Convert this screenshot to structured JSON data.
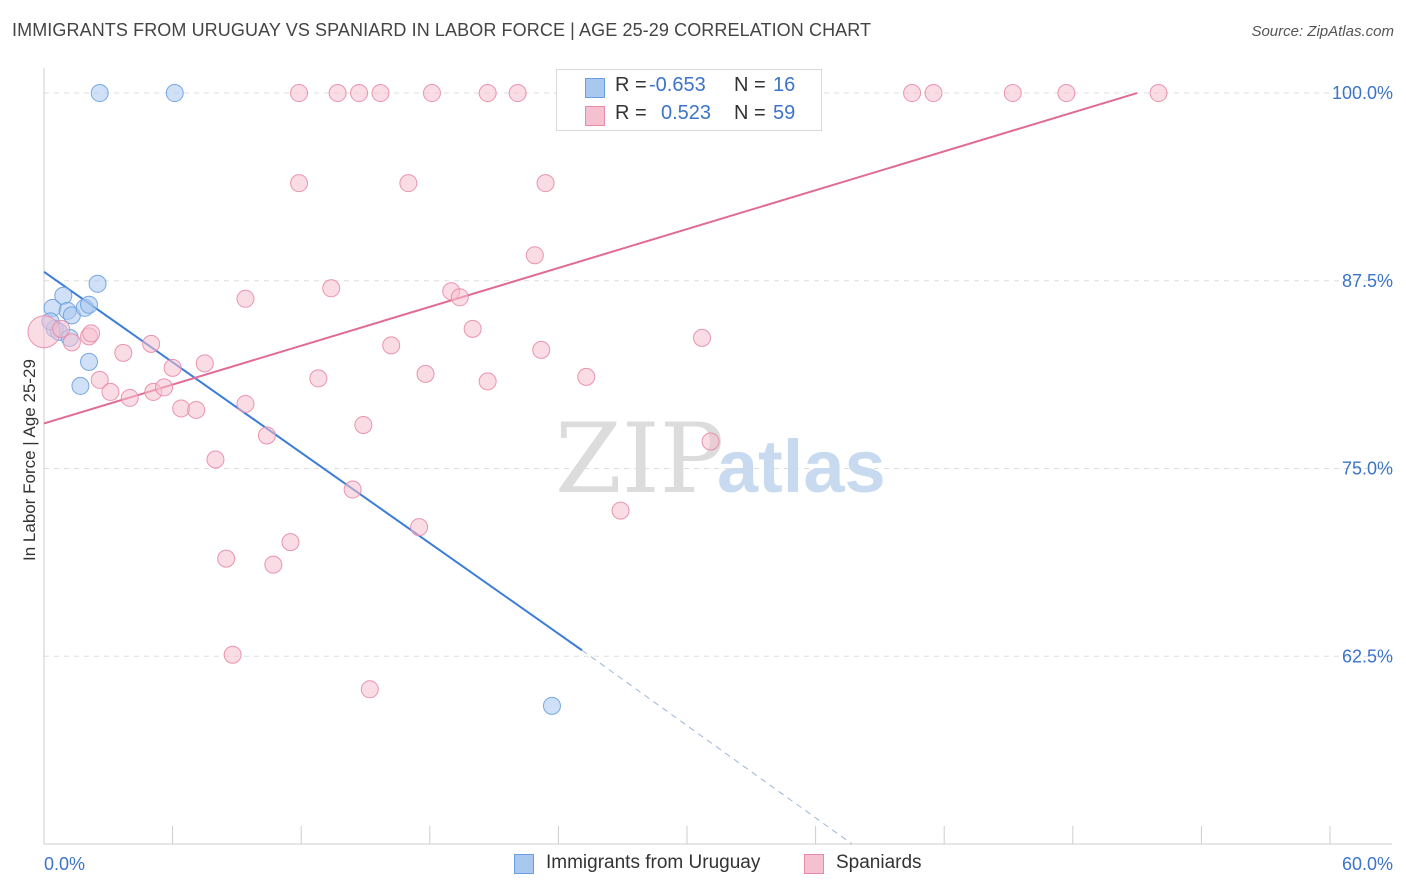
{
  "header": {
    "title": "IMMIGRANTS FROM URUGUAY VS SPANIARD IN LABOR FORCE | AGE 25-29 CORRELATION CHART",
    "source": "Source: ZipAtlas.com"
  },
  "watermark": {
    "zip": "ZIP",
    "atlas": "atlas"
  },
  "legend": {
    "rows": [
      {
        "r_label": "R =",
        "r_value": "-0.653",
        "n_label": "N =",
        "n_value": "16",
        "color": "#a9c8f0",
        "border": "#6a9ee0"
      },
      {
        "r_label": "R =",
        "r_value": "0.523",
        "n_label": "N =",
        "n_value": "59",
        "color": "#f5c0d0",
        "border": "#e889a8"
      }
    ]
  },
  "bottom_legend": {
    "items": [
      {
        "label": "Immigrants from Uruguay",
        "color": "#a9c8f0",
        "border": "#6a9ee0"
      },
      {
        "label": "Spaniards",
        "color": "#f5c0d0",
        "border": "#e889a8"
      }
    ]
  },
  "chart_data": {
    "type": "scatter",
    "title": "IMMIGRANTS FROM URUGUAY VS SPANIARD IN LABOR FORCE | AGE 25-29 CORRELATION CHART",
    "xlabel": "",
    "ylabel": "In Labor Force | Age 25-29",
    "xlim": [
      0,
      60
    ],
    "ylim": [
      50,
      102.2
    ],
    "x_tick_labels": [
      "0.0%",
      "60.0%"
    ],
    "y_ticks": [
      62.5,
      75.0,
      87.5,
      100.0
    ],
    "y_tick_labels": [
      "62.5%",
      "75.0%",
      "87.5%",
      "100.0%"
    ],
    "grid": true,
    "legend_position": "top-center",
    "series": [
      {
        "name": "Immigrants from Uruguay",
        "color": "#a9c8f0",
        "stroke": "#6a9ee0",
        "line_color": "#3b7dd8",
        "points": [
          [
            2.6,
            100.0
          ],
          [
            6.1,
            100.0
          ],
          [
            0.4,
            85.7
          ],
          [
            0.9,
            86.5
          ],
          [
            1.1,
            85.5
          ],
          [
            1.3,
            85.2
          ],
          [
            1.9,
            85.7
          ],
          [
            2.1,
            85.9
          ],
          [
            2.5,
            87.3
          ],
          [
            0.5,
            84.3
          ],
          [
            0.7,
            84.1
          ],
          [
            1.2,
            83.7
          ],
          [
            0.3,
            84.8
          ],
          [
            2.1,
            82.1
          ],
          [
            1.7,
            80.5
          ],
          [
            23.7,
            59.2
          ]
        ],
        "trend": {
          "x0": 0,
          "y0": 88.1,
          "x1": 25.1,
          "y1": 62.9,
          "dash_to_x": 37.7,
          "dash_to_y": 50.0
        }
      },
      {
        "name": "Spaniards",
        "color": "#f5c0d0",
        "stroke": "#e889a8",
        "line_color": "#e06b95",
        "points": [
          [
            0.0,
            84.1
          ],
          [
            0.8,
            84.3
          ],
          [
            2.1,
            83.8
          ],
          [
            2.2,
            84.0
          ],
          [
            1.3,
            83.4
          ],
          [
            3.7,
            82.7
          ],
          [
            5.0,
            83.3
          ],
          [
            6.0,
            81.7
          ],
          [
            7.5,
            82.0
          ],
          [
            2.6,
            80.9
          ],
          [
            3.1,
            80.1
          ],
          [
            4.0,
            79.7
          ],
          [
            5.1,
            80.1
          ],
          [
            5.6,
            80.4
          ],
          [
            6.4,
            79.0
          ],
          [
            7.1,
            78.9
          ],
          [
            9.4,
            79.3
          ],
          [
            8.0,
            75.6
          ],
          [
            10.4,
            77.2
          ],
          [
            11.9,
            94.0
          ],
          [
            12.8,
            81.0
          ],
          [
            13.4,
            87.0
          ],
          [
            14.4,
            73.6
          ],
          [
            14.9,
            77.9
          ],
          [
            16.2,
            83.2
          ],
          [
            17.0,
            94.0
          ],
          [
            17.5,
            71.1
          ],
          [
            17.8,
            81.3
          ],
          [
            18.1,
            100.0
          ],
          [
            19.0,
            86.8
          ],
          [
            19.4,
            86.4
          ],
          [
            20.0,
            84.3
          ],
          [
            20.7,
            100.0
          ],
          [
            20.7,
            80.8
          ],
          [
            22.1,
            100.0
          ],
          [
            22.9,
            89.2
          ],
          [
            23.2,
            82.9
          ],
          [
            23.4,
            94.0
          ],
          [
            24.4,
            100.0
          ],
          [
            25.3,
            81.1
          ],
          [
            26.9,
            72.2
          ],
          [
            28.5,
            100.0
          ],
          [
            30.7,
            83.7
          ],
          [
            31.1,
            76.8
          ],
          [
            40.5,
            100.0
          ],
          [
            41.5,
            100.0
          ],
          [
            45.2,
            100.0
          ],
          [
            47.7,
            100.0
          ],
          [
            52.0,
            100.0
          ],
          [
            15.7,
            100.0
          ],
          [
            14.7,
            100.0
          ],
          [
            13.7,
            100.0
          ],
          [
            11.9,
            100.0
          ],
          [
            9.4,
            86.3
          ],
          [
            8.5,
            69.0
          ],
          [
            10.7,
            68.6
          ],
          [
            11.5,
            70.1
          ],
          [
            8.8,
            62.6
          ],
          [
            15.2,
            60.3
          ]
        ],
        "trend": {
          "x0": 0,
          "y0": 78.0,
          "x1": 51.0,
          "y1": 100.0
        }
      }
    ]
  }
}
